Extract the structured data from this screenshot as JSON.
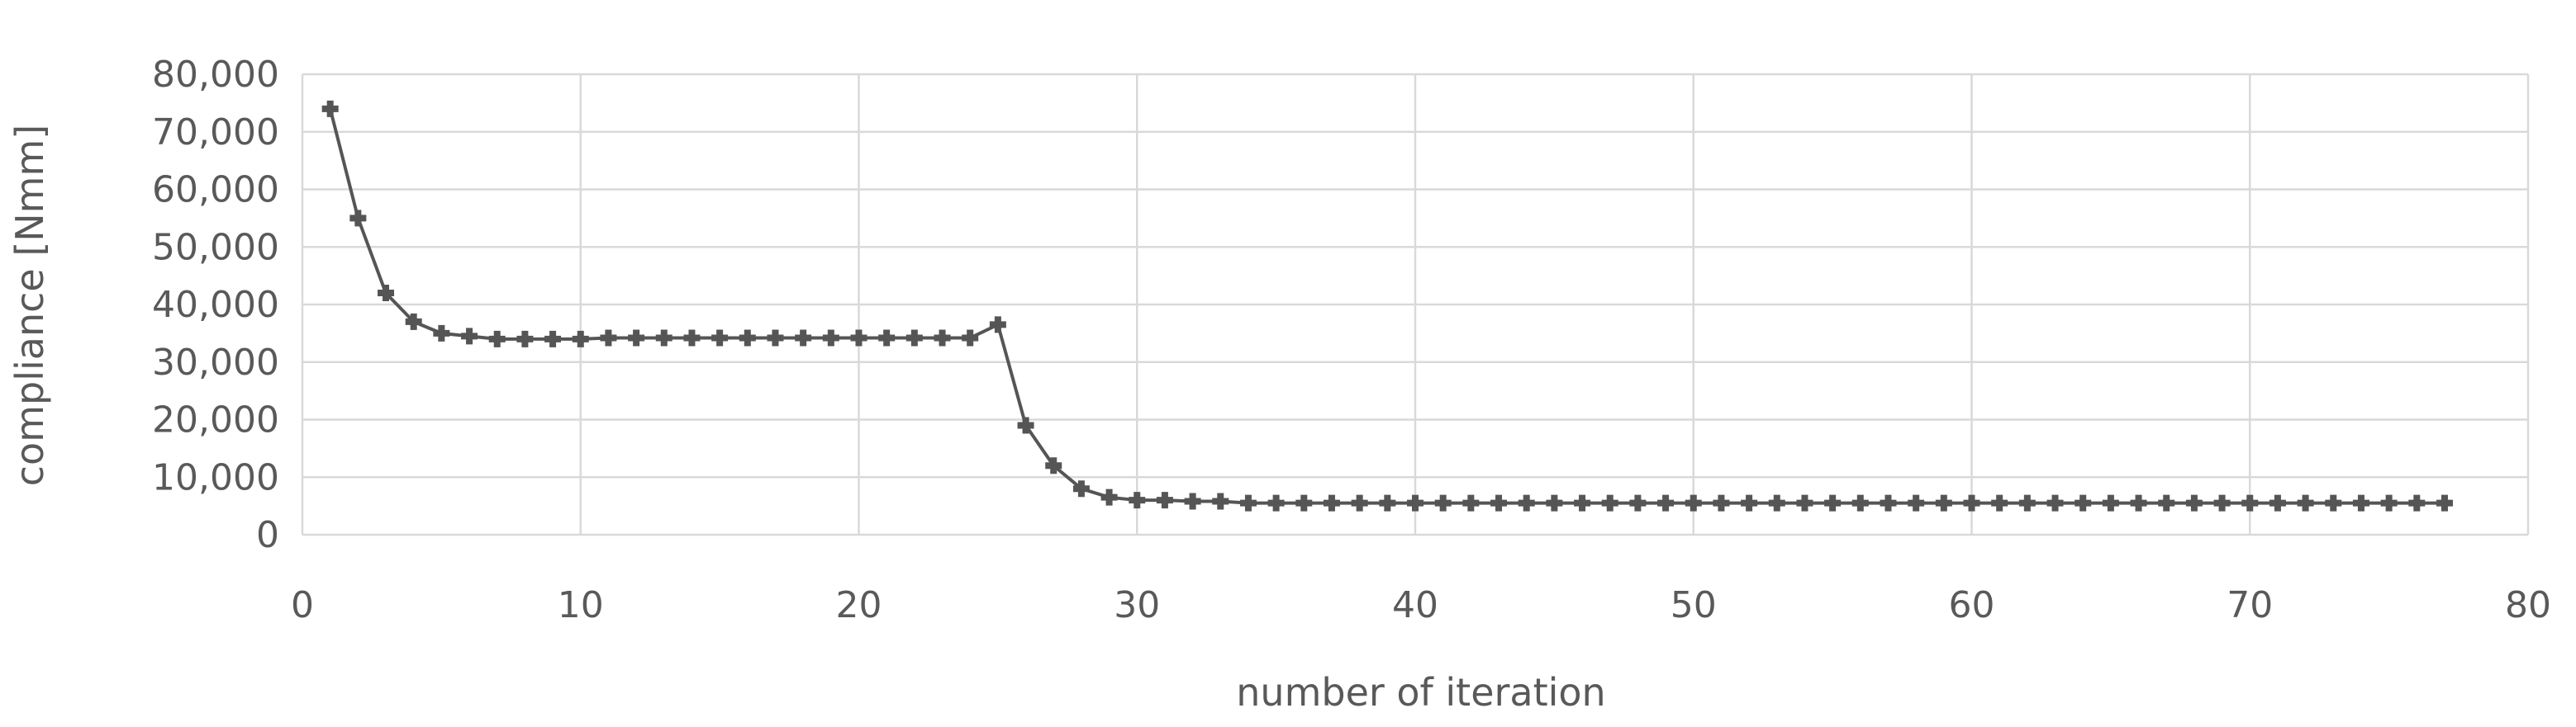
{
  "chart_data": {
    "type": "scatter",
    "xlabel": "number of iteration",
    "ylabel": "compliance [Nmm]",
    "xlim": [
      0,
      80
    ],
    "ylim": [
      0,
      80000
    ],
    "x_ticks": [
      0,
      10,
      20,
      30,
      40,
      50,
      60,
      70,
      80
    ],
    "x_tick_labels": [
      "0",
      "10",
      "20",
      "30",
      "40",
      "50",
      "60",
      "70",
      "80"
    ],
    "y_ticks": [
      0,
      10000,
      20000,
      30000,
      40000,
      50000,
      60000,
      70000,
      80000
    ],
    "y_tick_labels": [
      "0",
      "10,000",
      "20,000",
      "30,000",
      "40,000",
      "50,000",
      "60,000",
      "70,000",
      "80,000"
    ],
    "grid": true,
    "legend": "none",
    "line_color": "#555555",
    "marker": "plus",
    "series": [
      {
        "x": [
          1,
          2,
          3,
          4,
          5,
          6,
          7,
          8,
          9,
          10,
          11,
          12,
          13,
          14,
          15,
          16,
          17,
          18,
          19,
          20,
          21,
          22,
          23,
          24,
          25,
          26,
          27,
          28,
          29,
          30,
          31,
          32,
          33,
          34,
          35,
          36,
          37,
          38,
          39,
          40,
          41,
          42,
          43,
          44,
          45,
          46,
          47,
          48,
          49,
          50,
          51,
          52,
          53,
          54,
          55,
          56,
          57,
          58,
          59,
          60,
          61,
          62,
          63,
          64,
          65,
          66,
          67,
          68,
          69,
          70,
          71,
          72,
          73,
          74,
          75,
          76,
          77
        ],
        "y": [
          74000,
          55000,
          42000,
          37000,
          35000,
          34500,
          34000,
          34000,
          34000,
          34000,
          34200,
          34200,
          34200,
          34200,
          34200,
          34200,
          34200,
          34200,
          34200,
          34200,
          34200,
          34200,
          34200,
          34200,
          36500,
          19000,
          12000,
          8000,
          6500,
          6000,
          6000,
          5800,
          5800,
          5500,
          5500,
          5500,
          5500,
          5500,
          5500,
          5500,
          5500,
          5500,
          5500,
          5500,
          5500,
          5500,
          5500,
          5500,
          5500,
          5500,
          5500,
          5500,
          5500,
          5500,
          5500,
          5500,
          5500,
          5500,
          5500,
          5500,
          5500,
          5500,
          5500,
          5500,
          5500,
          5500,
          5500,
          5500,
          5500,
          5500,
          5500,
          5500,
          5500,
          5500,
          5500,
          5500,
          5500
        ]
      }
    ]
  }
}
